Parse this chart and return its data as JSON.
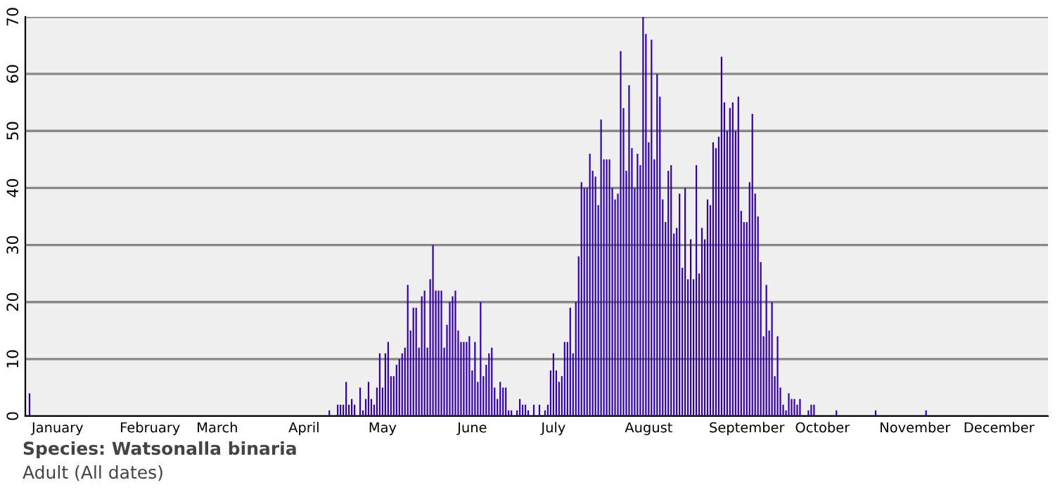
{
  "chart_data": {
    "type": "bar",
    "color": "#3300aa",
    "categories": [
      null,
      null,
      null,
      null,
      null,
      null,
      null,
      null,
      null,
      null,
      null,
      "January",
      null,
      null,
      null,
      null,
      null,
      null,
      null,
      null,
      null,
      null,
      null,
      null,
      null,
      null,
      null,
      null,
      null,
      null,
      null,
      null,
      null,
      null,
      null,
      null,
      null,
      null,
      null,
      null,
      null,
      null,
      null,
      null,
      "February",
      null,
      null,
      null,
      null,
      null,
      null,
      null,
      null,
      null,
      null,
      null,
      null,
      null,
      null,
      null,
      null,
      null,
      null,
      null,
      null,
      null,
      null,
      null,
      "March",
      null,
      null,
      null,
      null,
      null,
      null,
      null,
      null,
      null,
      null,
      null,
      null,
      null,
      null,
      null,
      null,
      null,
      null,
      null,
      null,
      null,
      null,
      null,
      null,
      null,
      null,
      null,
      null,
      null,
      null,
      "April",
      null,
      null,
      null,
      null,
      null,
      null,
      null,
      null,
      null,
      null,
      null,
      null,
      null,
      null,
      null,
      null,
      null,
      null,
      null,
      null,
      null,
      null,
      null,
      null,
      null,
      null,
      null,
      "May",
      null,
      null,
      null,
      null,
      null,
      null,
      null,
      null,
      null,
      null,
      null,
      null,
      null,
      null,
      null,
      null,
      null,
      null,
      null,
      null,
      null,
      null,
      null,
      null,
      null,
      null,
      null,
      null,
      null,
      null,
      null,
      "June",
      null,
      null,
      null,
      null,
      null,
      null,
      null,
      null,
      null,
      null,
      null,
      null,
      null,
      null,
      null,
      null,
      null,
      null,
      null,
      null,
      null,
      null,
      null,
      null,
      null,
      null,
      null,
      null,
      "July",
      null,
      null,
      null,
      null,
      null,
      null,
      null,
      null,
      null,
      null,
      null,
      null,
      null,
      null,
      null,
      null,
      null,
      null,
      null,
      null,
      null,
      null,
      null,
      null,
      null,
      null,
      null,
      null,
      null,
      null,
      null,
      null,
      null,
      "August",
      null,
      null,
      null,
      null,
      null,
      null,
      null,
      null,
      null,
      null,
      null,
      null,
      null,
      null,
      null,
      null,
      null,
      null,
      null,
      null,
      null,
      null,
      null,
      null,
      null,
      null,
      null,
      null,
      null,
      null,
      null,
      null,
      null,
      null,
      "September",
      null,
      null,
      null,
      null,
      null,
      null,
      null,
      null,
      null,
      null,
      null,
      null,
      null,
      null,
      null,
      null,
      null,
      null,
      null,
      null,
      null,
      null,
      null,
      null,
      null,
      null,
      "October",
      null,
      null,
      null,
      null,
      null,
      null,
      null,
      null,
      null,
      null,
      null,
      null,
      null,
      null,
      null,
      null,
      null,
      null,
      null,
      null,
      null,
      null,
      null,
      null,
      null,
      null,
      null,
      null,
      null,
      null,
      null,
      null,
      "November",
      null,
      null,
      null,
      null,
      null,
      null,
      null,
      null,
      null,
      null,
      null,
      null,
      null,
      null,
      null,
      null,
      null,
      null,
      null,
      null,
      null,
      null,
      null,
      null,
      null,
      null,
      null,
      null,
      null,
      "December",
      null,
      null,
      null,
      null,
      null,
      null,
      null,
      null,
      null,
      null,
      null,
      null,
      null,
      null,
      null,
      null,
      null
    ],
    "values": [
      0,
      4,
      0,
      0,
      0,
      0,
      0,
      0,
      0,
      0,
      0,
      0,
      0,
      0,
      0,
      0,
      0,
      0,
      0,
      0,
      0,
      0,
      0,
      0,
      0,
      0,
      0,
      0,
      0,
      0,
      0,
      0,
      0,
      0,
      0,
      0,
      0,
      0,
      0,
      0,
      0,
      0,
      0,
      0,
      0,
      0,
      0,
      0,
      0,
      0,
      0,
      0,
      0,
      0,
      0,
      0,
      0,
      0,
      0,
      0,
      0,
      0,
      0,
      0,
      0,
      0,
      0,
      0,
      0,
      0,
      0,
      0,
      0,
      0,
      0,
      0,
      0,
      0,
      0,
      0,
      0,
      0,
      0,
      0,
      0,
      0,
      0,
      0,
      0,
      0,
      0,
      0,
      0,
      0,
      0,
      0,
      0,
      0,
      0,
      0,
      0,
      0,
      0,
      0,
      0,
      0,
      0,
      0,
      1,
      0,
      0,
      2,
      2,
      2,
      6,
      2,
      3,
      2,
      0,
      5,
      1,
      3,
      6,
      3,
      2,
      5,
      11,
      5,
      11,
      13,
      7,
      7,
      9,
      10,
      11,
      12,
      23,
      15,
      19,
      19,
      12,
      21,
      22,
      12,
      24,
      30,
      22,
      22,
      22,
      12,
      16,
      20,
      21,
      22,
      15,
      13,
      13,
      13,
      14,
      8,
      13,
      6,
      20,
      7,
      9,
      11,
      12,
      5,
      3,
      6,
      5,
      5,
      1,
      1,
      0,
      1,
      3,
      2,
      2,
      1,
      0,
      2,
      0,
      2,
      0,
      1,
      2,
      8,
      11,
      8,
      6,
      7,
      13,
      13,
      19,
      11,
      20,
      28,
      41,
      40,
      40,
      46,
      43,
      42,
      37,
      52,
      45,
      45,
      45,
      40,
      38,
      39,
      64,
      54,
      43,
      58,
      47,
      40,
      46,
      44,
      70,
      67,
      48,
      66,
      45,
      60,
      56,
      38,
      34,
      43,
      44,
      32,
      33,
      39,
      26,
      40,
      24,
      31,
      24,
      44,
      25,
      33,
      31,
      38,
      37,
      48,
      47,
      49,
      63,
      55,
      50,
      54,
      55,
      50,
      56,
      36,
      34,
      34,
      41,
      53,
      39,
      35,
      27,
      14,
      23,
      15,
      20,
      7,
      14,
      5,
      2,
      1,
      4,
      3,
      3,
      2,
      3,
      0,
      0,
      1,
      2,
      2,
      0,
      0,
      0,
      0,
      0,
      0,
      0,
      1,
      0,
      0,
      0,
      0,
      0,
      0,
      0,
      0,
      0,
      0,
      0,
      0,
      0,
      1,
      0,
      0,
      0,
      0,
      0,
      0,
      0,
      0,
      0,
      0,
      0,
      0,
      0,
      0,
      0,
      0,
      0,
      1,
      0,
      0,
      0,
      0,
      0,
      0,
      0,
      0,
      0,
      0,
      0,
      0,
      0,
      0,
      0,
      0,
      0,
      0,
      0,
      0,
      0,
      0,
      0,
      0,
      0,
      0,
      0,
      0,
      0,
      0,
      0,
      0,
      0,
      0,
      0,
      0,
      0,
      0,
      0,
      0,
      0,
      0,
      0
    ],
    "ylim": [
      0,
      70
    ],
    "yticks": [
      0,
      10,
      20,
      30,
      40,
      50,
      60,
      70
    ],
    "grid": "y",
    "annotations": [
      "Species: Watsonalla binaria",
      "Adult (All dates)"
    ]
  }
}
